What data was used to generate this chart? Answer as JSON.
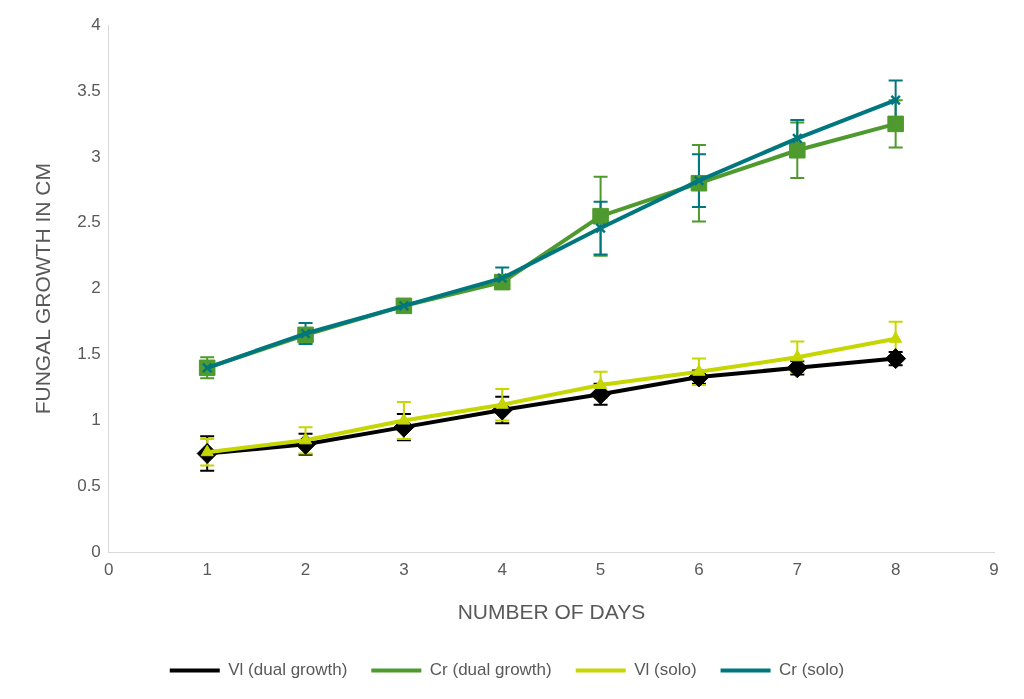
{
  "chart_data": {
    "type": "line",
    "xlabel": "NUMBER OF DAYS",
    "ylabel": "FUNGAL GROWTH IN CM",
    "x": [
      1,
      2,
      3,
      4,
      5,
      6,
      7,
      8
    ],
    "xlim": [
      0,
      9
    ],
    "xticks": [
      0,
      1,
      2,
      3,
      4,
      5,
      6,
      7,
      8,
      9
    ],
    "ylim": [
      0,
      4
    ],
    "yticks": [
      0,
      0.5,
      1,
      1.5,
      2,
      2.5,
      3,
      3.5,
      4
    ],
    "grid": false,
    "legend": "bottom",
    "line_style": "solid",
    "series": [
      {
        "name": "Vl (dual growth)",
        "color": "#000000",
        "marker": "diamond",
        "values": [
          0.75,
          0.82,
          0.95,
          1.08,
          1.2,
          1.33,
          1.4,
          1.47
        ],
        "errors": [
          0.13,
          0.08,
          0.1,
          0.1,
          0.08,
          0.05,
          0.05,
          0.05
        ]
      },
      {
        "name": "Cr (dual growth)",
        "color": "#4e9a2e",
        "marker": "square",
        "values": [
          1.4,
          1.65,
          1.87,
          2.05,
          2.55,
          2.8,
          3.05,
          3.25
        ],
        "errors": [
          0.08,
          null,
          null,
          0.05,
          0.3,
          0.29,
          0.21,
          0.18
        ]
      },
      {
        "name": "Vl (solo)",
        "color": "#c5d600",
        "marker": "triangle",
        "values": [
          0.76,
          0.85,
          1.0,
          1.12,
          1.27,
          1.37,
          1.48,
          1.62
        ],
        "errors": [
          0.1,
          0.1,
          0.14,
          0.12,
          0.1,
          0.1,
          0.12,
          0.13
        ]
      },
      {
        "name": "Cr (solo)",
        "color": "#00777f",
        "marker": "cross",
        "values": [
          1.4,
          1.66,
          1.87,
          2.08,
          2.46,
          2.82,
          3.14,
          3.43
        ],
        "errors": [
          null,
          0.08,
          null,
          0.08,
          0.2,
          0.2,
          0.14,
          0.15
        ]
      }
    ]
  }
}
